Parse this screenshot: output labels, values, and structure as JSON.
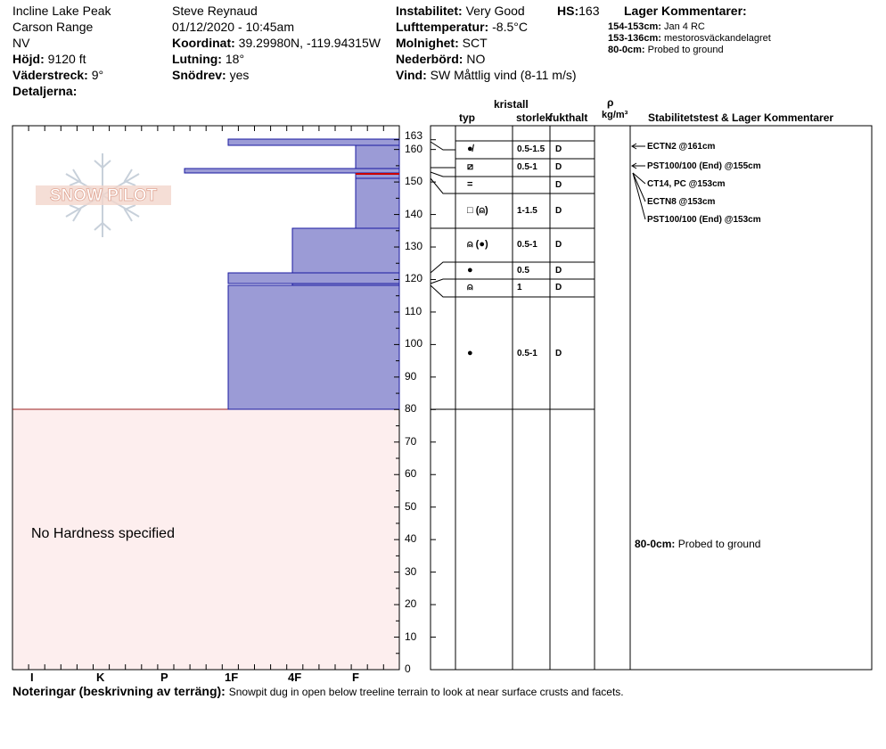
{
  "header": {
    "location": "Incline Lake Peak",
    "range": "Carson Range",
    "state": "NV",
    "elevation_label": "Höjd:",
    "elevation": "9120 ft",
    "aspect_label": "Väderstreck:",
    "aspect": "9°",
    "details_label": "Detaljerna:",
    "observer": "Steve Reynaud",
    "datetime": "01/12/2020 - 10:45am",
    "coord_label": "Koordinat:",
    "coord": "39.29980N, -119.94315W",
    "slope_label": "Lutning:",
    "slope": "18°",
    "drift_label": "Snödrev:",
    "drift": "yes",
    "instability_label": "Instabilitet:",
    "instability": "Very Good",
    "hs_label": "HS:",
    "hs": "163",
    "airtemp_label": "Lufttemperatur:",
    "airtemp": "-8.5°C",
    "sky_label": "Molnighet:",
    "sky": "SCT",
    "precip_label": "Nederbörd:",
    "precip": "NO",
    "wind_label": "Vind:",
    "wind": "SW  Måttlig vind (8-11 m/s)",
    "layer_comments_title": "Lager Kommentarer:"
  },
  "layer_comments": [
    {
      "range": "154-153cm:",
      "text": "Jan 4 RC"
    },
    {
      "range": "153-136cm:",
      "text": "mestorosväckandelagret"
    },
    {
      "range": "80-0cm:",
      "text": "Probed to ground"
    }
  ],
  "columns": {
    "kristall": "kristall",
    "typ": "typ",
    "storlek": "storlek",
    "fukthalt": "fukthalt",
    "rho": "ρ",
    "kgm3": "kg/m³",
    "stability": "Stabilitetstest & Lager Kommentarer"
  },
  "hardness_axis": {
    "labels": [
      "I",
      "K",
      "P",
      "1F",
      "4F",
      "F"
    ],
    "no_hardness": "No Hardness specified"
  },
  "depth_axis": {
    "ticks": [
      "0",
      "10",
      "20",
      "30",
      "40",
      "50",
      "60",
      "70",
      "80",
      "90",
      "100",
      "110",
      "120",
      "130",
      "140",
      "150",
      "160",
      "163"
    ]
  },
  "layers": [
    {
      "top": 163,
      "bottom": 161,
      "hardness": "1F",
      "grain": "●̸",
      "size": "0.5-1.5",
      "moisture": "D"
    },
    {
      "top": 161,
      "bottom": 154,
      "hardness": "4F-F",
      "grain": "",
      "size": "",
      "moisture": ""
    },
    {
      "top": 154,
      "bottom": 153,
      "hardness": "P-",
      "grain": "⧄",
      "size": "0.5-1",
      "moisture": "D"
    },
    {
      "top": 153,
      "bottom": 146,
      "hardness": "4F-F",
      "grain": "=",
      "size": "",
      "moisture": "D"
    },
    {
      "top": 146,
      "bottom": 136,
      "hardness": "4F-F",
      "grain": "□ (⍝)",
      "size": "1-1.5",
      "moisture": "D"
    },
    {
      "top": 136,
      "bottom": 122,
      "hardness": "4F",
      "grain": "⍝ (●)",
      "size": "0.5-1",
      "moisture": "D"
    },
    {
      "top": 122,
      "bottom": 120,
      "hardness": "1F",
      "grain": "●",
      "size": "0.5",
      "moisture": "D"
    },
    {
      "top": 119,
      "bottom": 80,
      "hardness": "1F",
      "grain": "⍝",
      "size": "1",
      "moisture": "D"
    },
    {
      "top": 80,
      "bottom": 80,
      "hardness": "",
      "grain": "●",
      "size": "0.5-1",
      "moisture": "D"
    }
  ],
  "grain_rows": [
    {
      "grain": "●̸",
      "size": "0.5-1.5",
      "moisture": "D"
    },
    {
      "grain": "⧄",
      "size": "0.5-1",
      "moisture": "D"
    },
    {
      "grain": "=",
      "size": "",
      "moisture": "D"
    },
    {
      "grain": "□ (⍝)",
      "size": "1-1.5",
      "moisture": "D"
    },
    {
      "grain": "⍝ (●)",
      "size": "0.5-1",
      "moisture": "D"
    },
    {
      "grain": "●",
      "size": "0.5",
      "moisture": "D"
    },
    {
      "grain": "⍝",
      "size": "1",
      "moisture": "D"
    },
    {
      "grain": "●",
      "size": "0.5-1",
      "moisture": "D"
    }
  ],
  "stability_tests": [
    "ECTN2 @161cm",
    "PST100/100 (End) @155cm",
    "CT14, PC @153cm",
    "ECTN8 @153cm",
    "PST100/100 (End) @153cm"
  ],
  "bottom_comment": {
    "range": "80-0cm:",
    "text": "Probed to ground"
  },
  "notes_label": "Noteringar (beskrivning av terräng):",
  "notes": "Snowpit dug in open below treeline terrain to look at near surface crusts and facets.",
  "logo_text": "SNOW PILOT",
  "colors": {
    "layer_fill": "#9b9bd6",
    "layer_stroke": "#1a1aa0",
    "no_hardness_bg": "#fdeeee",
    "weak_layer": "#cc0000"
  }
}
